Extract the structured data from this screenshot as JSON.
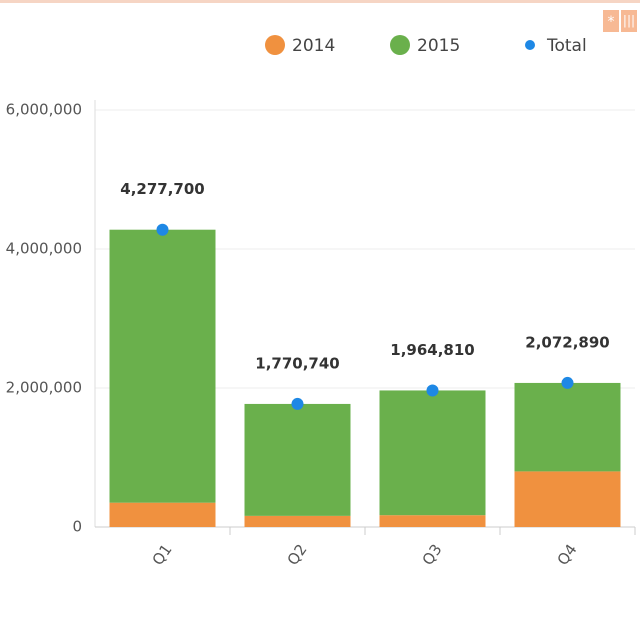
{
  "chart_data": {
    "type": "stacked-bar",
    "categories": [
      "Q1",
      "Q2",
      "Q3",
      "Q4"
    ],
    "series": [
      {
        "name": "2014",
        "color": "#f0913f",
        "values": [
          350000,
          160000,
          170000,
          800000
        ]
      },
      {
        "name": "2015",
        "color": "#6ab04c",
        "values": [
          3927700,
          1610740,
          1794810,
          1272890
        ]
      }
    ],
    "total": {
      "name": "Total",
      "color": "#1e88e5",
      "values": [
        4277700,
        1770740,
        1964810,
        2072890
      ],
      "value_labels": [
        "4,277,700",
        "1,770,740",
        "1,964,810",
        "2,072,890"
      ]
    },
    "ylim": [
      0,
      6000000
    ],
    "yticks": [
      0,
      {
        "value": 2000000,
        "label": "2,000,000"
      },
      {
        "value": 4000000,
        "label": "4,000,000"
      },
      {
        "value": 6000000,
        "label": "6,000,000"
      }
    ],
    "grid": true,
    "legend": "top"
  }
}
